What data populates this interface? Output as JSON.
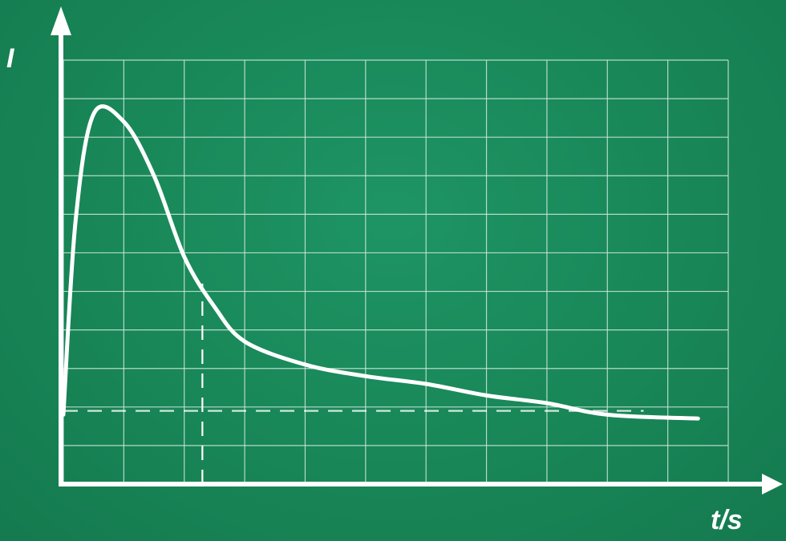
{
  "chart_data": {
    "type": "line",
    "title": "",
    "xlabel": "t/s",
    "ylabel": "I",
    "grid": true,
    "xlim": [
      0,
      11
    ],
    "ylim": [
      0,
      11
    ],
    "series": [
      {
        "values": [
          {
            "x": 0.0,
            "y": 1.8
          },
          {
            "x": 0.2,
            "y": 6.8
          },
          {
            "x": 0.5,
            "y": 9.6
          },
          {
            "x": 1.0,
            "y": 9.4
          },
          {
            "x": 1.5,
            "y": 8.0
          },
          {
            "x": 2.0,
            "y": 5.9
          },
          {
            "x": 2.5,
            "y": 4.6
          },
          {
            "x": 3.0,
            "y": 3.7
          },
          {
            "x": 4.0,
            "y": 3.1
          },
          {
            "x": 5.0,
            "y": 2.8
          },
          {
            "x": 6.0,
            "y": 2.6
          },
          {
            "x": 7.0,
            "y": 2.3
          },
          {
            "x": 8.0,
            "y": 2.1
          },
          {
            "x": 9.0,
            "y": 1.8
          },
          {
            "x": 10.5,
            "y": 1.7
          }
        ]
      }
    ],
    "reference_lines": [
      {
        "orientation": "vertical",
        "x": 2.3,
        "style": "dashed"
      },
      {
        "orientation": "horizontal",
        "y": 1.9,
        "style": "dashed"
      }
    ]
  },
  "colors": {
    "background": "#188556",
    "axis": "#ffffff",
    "grid": "#cfe9dc",
    "curve": "#ffffff"
  }
}
